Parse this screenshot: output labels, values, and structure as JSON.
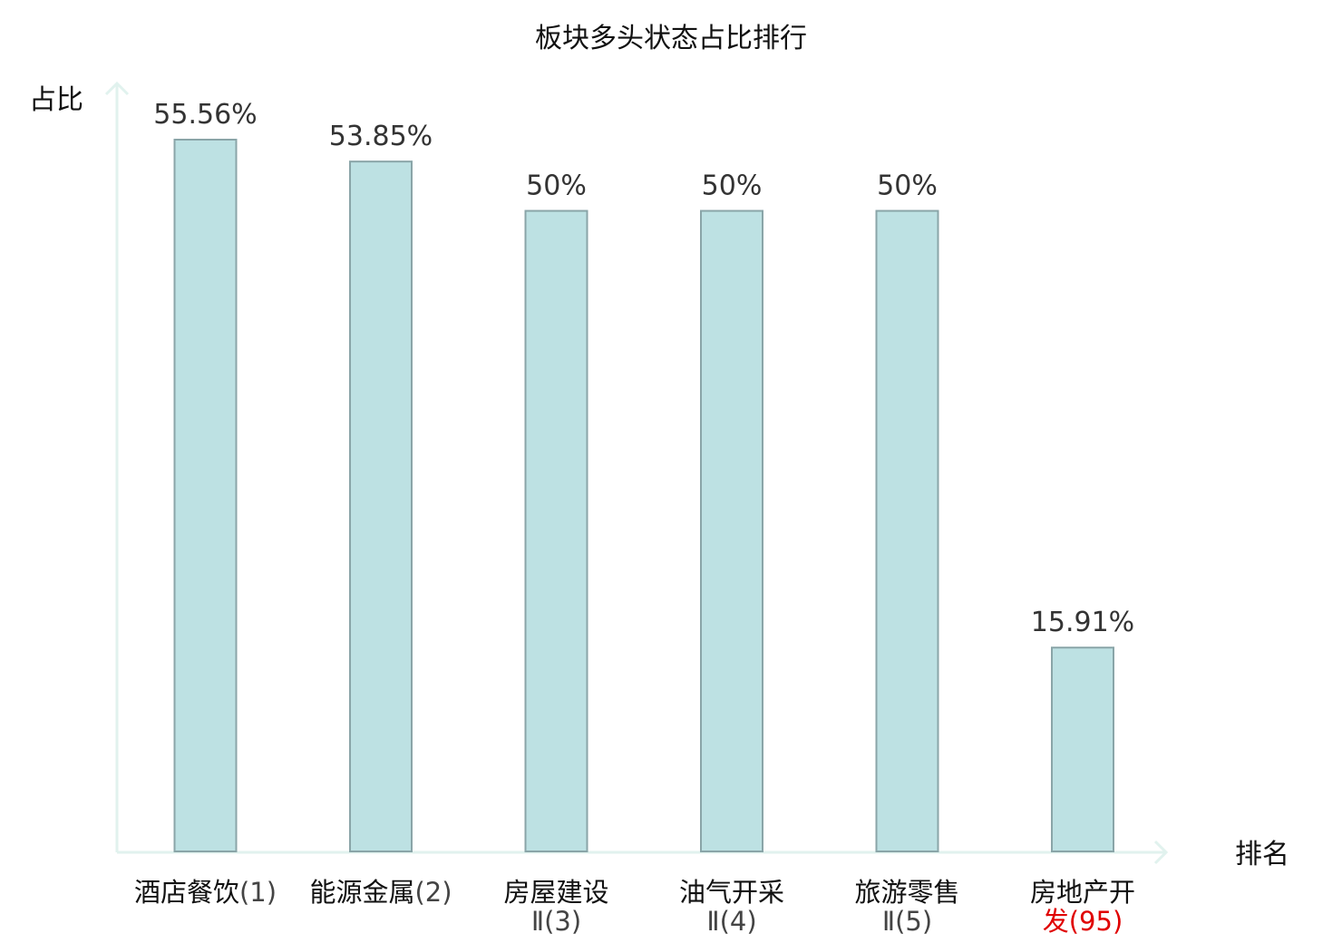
{
  "chart_data": {
    "type": "bar",
    "title": "板块多头状态占比排行",
    "ylabel": "占比",
    "xlabel": "排名",
    "ylim": [
      0,
      60
    ],
    "grid": false,
    "categories": [
      {
        "line1": "酒店餐饮",
        "line1_suffix": "(1)",
        "line2": "",
        "highlight": false
      },
      {
        "line1": "能源金属",
        "line1_suffix": "(2)",
        "line2": "",
        "highlight": false
      },
      {
        "line1": "房屋建设",
        "line1_suffix": "",
        "line2": "Ⅱ(3)",
        "highlight": false
      },
      {
        "line1": "油气开采",
        "line1_suffix": "",
        "line2": "Ⅱ(4)",
        "highlight": false
      },
      {
        "line1": "旅游零售",
        "line1_suffix": "",
        "line2": "Ⅱ(5)",
        "highlight": false
      },
      {
        "line1": "房地产开",
        "line1_suffix": "",
        "line2": "发",
        "line2_suffix": "(95)",
        "highlight": true
      }
    ],
    "values": [
      55.56,
      53.85,
      50,
      50,
      50,
      15.91
    ],
    "value_labels": [
      "55.56%",
      "53.85%",
      "50%",
      "50%",
      "50%",
      "15.91%"
    ],
    "colors": {
      "bar_fill": "#bde1e3",
      "bar_stroke": "#8aa5a8",
      "axis": "#e1f2ee",
      "highlight_text": "#e00000",
      "label_text": "#111111"
    }
  }
}
